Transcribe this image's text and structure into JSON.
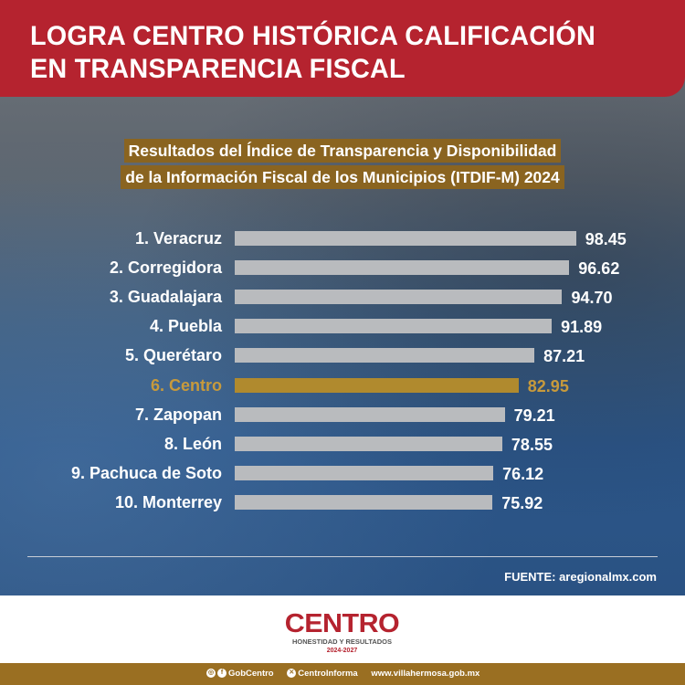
{
  "header": {
    "title_line1": "LOGRA CENTRO HISTÓRICA CALIFICACIÓN",
    "title_line2": "EN TRANSPARENCIA FISCAL"
  },
  "colors": {
    "header_red": "#b5232f",
    "gold": "#9a6f22",
    "bar_gray": "#b9bbbe",
    "highlight": "#b08a2e"
  },
  "chart_data": {
    "type": "bar",
    "orientation": "horizontal",
    "title_line1": "Resultados del Índice de Transparencia y Disponibilidad",
    "title_line2": "de la Información Fiscal de los Municipios (ITDIF-M) 2024",
    "categories": [
      "1. Veracruz",
      "2. Corregidora",
      "3. Guadalajara",
      "4. Puebla",
      "5. Querétaro",
      "6. Centro",
      "7. Zapopan",
      "8. León",
      "9. Pachuca de Soto",
      "10. Monterrey"
    ],
    "values": [
      98.45,
      96.62,
      94.7,
      91.89,
      87.21,
      82.95,
      79.21,
      78.55,
      76.12,
      75.92
    ],
    "value_labels": [
      "98.45",
      "96.62",
      "94.70",
      "91.89",
      "87.21",
      "82.95",
      "79.21",
      "78.55",
      "76.12",
      "75.92"
    ],
    "highlight_index": 5,
    "grid": false
  },
  "source": "FUENTE: aregionalmx.com",
  "logo": {
    "name": "CENTRO",
    "tagline": "HONESTIDAD Y RESULTADOS",
    "years": "2024-2027"
  },
  "footer": {
    "social1": "GobCentro",
    "social2": "CentroInforma",
    "website": "www.villahermosa.gob.mx"
  }
}
